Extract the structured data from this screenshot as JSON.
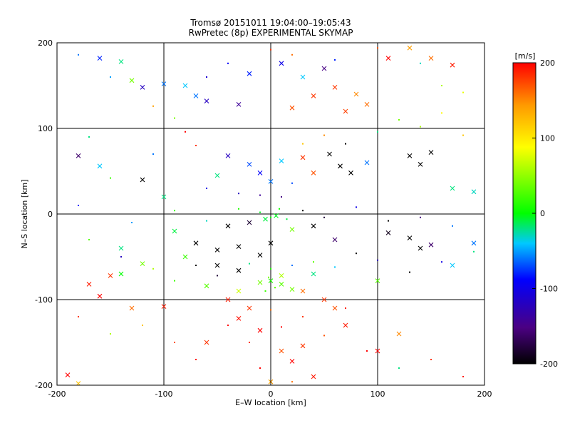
{
  "chart_data": {
    "type": "scatter",
    "title": "Tromsø 20151011 19:04:00–19:05:43",
    "subtitle": "RwPretec (8p) EXPERIMENTAL SKYMAP",
    "xlabel": "E–W location [km]",
    "ylabel": "N–S location [km]",
    "xlim": [
      -200,
      200
    ],
    "ylim": [
      -200,
      200
    ],
    "x_ticks": [
      "-200",
      "-100",
      "0",
      "100",
      "200"
    ],
    "y_ticks": [
      "-200",
      "-100",
      "0",
      "100",
      "200"
    ],
    "grid": true,
    "colorbar": {
      "label": "[m/s]",
      "range": [
        -200,
        200
      ],
      "ticks": [
        "200",
        "100",
        "0",
        "-100",
        "-200"
      ],
      "colormap": [
        "#000000",
        "#4b0082",
        "#0000ff",
        "#00c8ff",
        "#00ff00",
        "#ffff00",
        "#ff9900",
        "#ff0000"
      ]
    },
    "series": [
      {
        "name": "crosses",
        "marker": "x",
        "points": [
          [
            -140,
            178,
            -20
          ],
          [
            -100,
            152,
            -60
          ],
          [
            -80,
            150,
            -40
          ],
          [
            -70,
            138,
            -60
          ],
          [
            -120,
            148,
            -120
          ],
          [
            -160,
            182,
            -80
          ],
          [
            -130,
            156,
            40
          ],
          [
            -60,
            132,
            -120
          ],
          [
            -30,
            128,
            -140
          ],
          [
            -20,
            164,
            -80
          ],
          [
            10,
            176,
            -100
          ],
          [
            30,
            160,
            -40
          ],
          [
            50,
            170,
            -150
          ],
          [
            60,
            148,
            180
          ],
          [
            80,
            140,
            150
          ],
          [
            90,
            128,
            160
          ],
          [
            110,
            182,
            200
          ],
          [
            130,
            194,
            140
          ],
          [
            150,
            182,
            160
          ],
          [
            170,
            174,
            190
          ],
          [
            20,
            124,
            170
          ],
          [
            40,
            138,
            180
          ],
          [
            70,
            120,
            175
          ],
          [
            -180,
            68,
            -160
          ],
          [
            -160,
            56,
            -40
          ],
          [
            -120,
            40,
            -200
          ],
          [
            -100,
            20,
            -20
          ],
          [
            -50,
            45,
            -20
          ],
          [
            -40,
            68,
            -120
          ],
          [
            -20,
            58,
            -70
          ],
          [
            -10,
            48,
            -90
          ],
          [
            0,
            38,
            -60
          ],
          [
            10,
            62,
            -40
          ],
          [
            30,
            66,
            180
          ],
          [
            40,
            48,
            170
          ],
          [
            55,
            70,
            -200
          ],
          [
            65,
            56,
            -200
          ],
          [
            75,
            48,
            -200
          ],
          [
            90,
            60,
            -60
          ],
          [
            130,
            68,
            -200
          ],
          [
            140,
            58,
            -200
          ],
          [
            150,
            72,
            -200
          ],
          [
            170,
            30,
            -20
          ],
          [
            190,
            26,
            -30
          ],
          [
            -90,
            -20,
            -10
          ],
          [
            -70,
            -34,
            -200
          ],
          [
            -50,
            -42,
            -200
          ],
          [
            -30,
            -38,
            -200
          ],
          [
            -10,
            -48,
            -200
          ],
          [
            0,
            -34,
            -200
          ],
          [
            -40,
            -14,
            -200
          ],
          [
            -20,
            -10,
            -180
          ],
          [
            -5,
            -6,
            -10
          ],
          [
            5,
            -2,
            -5
          ],
          [
            20,
            -18,
            40
          ],
          [
            40,
            -14,
            -200
          ],
          [
            60,
            -30,
            -160
          ],
          [
            110,
            -22,
            -190
          ],
          [
            130,
            -28,
            -200
          ],
          [
            140,
            -40,
            -200
          ],
          [
            150,
            -36,
            -160
          ],
          [
            -140,
            -40,
            -20
          ],
          [
            -120,
            -58,
            40
          ],
          [
            -150,
            -72,
            180
          ],
          [
            -170,
            -82,
            190
          ],
          [
            -160,
            -96,
            200
          ],
          [
            -130,
            -110,
            160
          ],
          [
            -40,
            -100,
            190
          ],
          [
            -30,
            -122,
            195
          ],
          [
            -20,
            -110,
            180
          ],
          [
            -10,
            -136,
            200
          ],
          [
            -30,
            -90,
            70
          ],
          [
            10,
            -82,
            30
          ],
          [
            20,
            -88,
            40
          ],
          [
            40,
            -70,
            -20
          ],
          [
            30,
            -90,
            160
          ],
          [
            -100,
            -108,
            190
          ],
          [
            -60,
            -150,
            180
          ],
          [
            10,
            -160,
            170
          ],
          [
            20,
            -172,
            200
          ],
          [
            30,
            -154,
            180
          ],
          [
            40,
            -190,
            190
          ],
          [
            -190,
            -188,
            200
          ],
          [
            -180,
            -198,
            120
          ],
          [
            0,
            -196,
            140
          ],
          [
            -140,
            -70,
            0
          ],
          [
            -50,
            -60,
            -200
          ],
          [
            -30,
            -66,
            -200
          ],
          [
            50,
            -100,
            180
          ],
          [
            70,
            -130,
            190
          ],
          [
            100,
            -160,
            200
          ],
          [
            120,
            -140,
            150
          ],
          [
            -80,
            -50,
            20
          ],
          [
            -60,
            -84,
            30
          ],
          [
            0,
            -78,
            10
          ],
          [
            10,
            -72,
            60
          ],
          [
            -10,
            -80,
            40
          ],
          [
            100,
            -78,
            30
          ],
          [
            60,
            -110,
            170
          ],
          [
            170,
            -60,
            -40
          ],
          [
            190,
            -34,
            -60
          ]
        ]
      },
      {
        "name": "dots",
        "marker": "dot",
        "points": [
          [
            -180,
            186,
            -60
          ],
          [
            -150,
            160,
            -50
          ],
          [
            -110,
            126,
            140
          ],
          [
            -90,
            112,
            40
          ],
          [
            -60,
            160,
            -110
          ],
          [
            -40,
            176,
            -90
          ],
          [
            0,
            192,
            180
          ],
          [
            20,
            186,
            160
          ],
          [
            60,
            180,
            -80
          ],
          [
            100,
            194,
            170
          ],
          [
            140,
            176,
            -30
          ],
          [
            160,
            150,
            60
          ],
          [
            180,
            142,
            80
          ],
          [
            -170,
            90,
            -20
          ],
          [
            -150,
            42,
            20
          ],
          [
            -110,
            70,
            -60
          ],
          [
            -80,
            96,
            200
          ],
          [
            -70,
            80,
            180
          ],
          [
            -60,
            30,
            -100
          ],
          [
            -30,
            24,
            -120
          ],
          [
            -10,
            22,
            -140
          ],
          [
            10,
            20,
            -150
          ],
          [
            20,
            36,
            -70
          ],
          [
            30,
            82,
            120
          ],
          [
            50,
            92,
            150
          ],
          [
            70,
            82,
            -200
          ],
          [
            100,
            96,
            -20
          ],
          [
            120,
            110,
            40
          ],
          [
            140,
            102,
            60
          ],
          [
            160,
            118,
            90
          ],
          [
            180,
            92,
            120
          ],
          [
            -180,
            10,
            -80
          ],
          [
            -130,
            -10,
            -50
          ],
          [
            -90,
            4,
            20
          ],
          [
            -60,
            -8,
            -30
          ],
          [
            -30,
            6,
            10
          ],
          [
            -10,
            2,
            -5
          ],
          [
            0,
            -4,
            0
          ],
          [
            8,
            6,
            5
          ],
          [
            15,
            -6,
            -10
          ],
          [
            30,
            4,
            -200
          ],
          [
            50,
            -4,
            -180
          ],
          [
            80,
            8,
            -100
          ],
          [
            110,
            -8,
            -200
          ],
          [
            140,
            -4,
            -150
          ],
          [
            170,
            -14,
            -60
          ],
          [
            -170,
            -30,
            30
          ],
          [
            -140,
            -50,
            -120
          ],
          [
            -110,
            -64,
            60
          ],
          [
            -90,
            -78,
            20
          ],
          [
            -70,
            -60,
            -200
          ],
          [
            -50,
            -72,
            -180
          ],
          [
            -20,
            -58,
            -20
          ],
          [
            0,
            -64,
            10
          ],
          [
            20,
            -60,
            -60
          ],
          [
            40,
            -56,
            30
          ],
          [
            60,
            -62,
            -40
          ],
          [
            80,
            -46,
            -200
          ],
          [
            100,
            -54,
            -120
          ],
          [
            130,
            -68,
            -200
          ],
          [
            160,
            -56,
            -100
          ],
          [
            190,
            -44,
            -20
          ],
          [
            -180,
            -120,
            180
          ],
          [
            -150,
            -140,
            60
          ],
          [
            -120,
            -130,
            120
          ],
          [
            -90,
            -150,
            170
          ],
          [
            -70,
            -170,
            190
          ],
          [
            -40,
            -130,
            200
          ],
          [
            -20,
            -150,
            180
          ],
          [
            0,
            -112,
            160
          ],
          [
            10,
            -132,
            200
          ],
          [
            30,
            -120,
            180
          ],
          [
            50,
            -142,
            170
          ],
          [
            70,
            -110,
            190
          ],
          [
            90,
            -160,
            200
          ],
          [
            120,
            -180,
            -20
          ],
          [
            150,
            -170,
            180
          ],
          [
            180,
            -190,
            190
          ],
          [
            -10,
            -180,
            200
          ],
          [
            20,
            -196,
            160
          ],
          [
            -5,
            -90,
            20
          ],
          [
            -2,
            -74,
            40
          ],
          [
            4,
            -86,
            30
          ]
        ]
      }
    ]
  }
}
